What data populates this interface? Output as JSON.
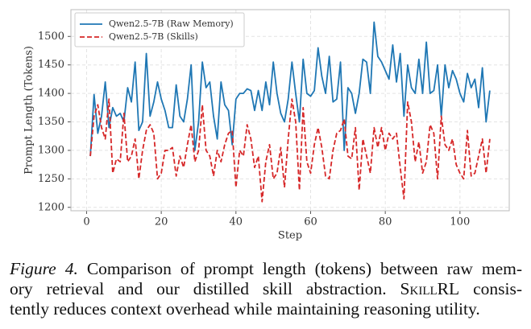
{
  "chart_data": {
    "type": "line",
    "xlabel": "Step",
    "ylabel": "Prompt Length (Tokens)",
    "x": [
      1,
      2,
      3,
      4,
      5,
      6,
      7,
      8,
      9,
      10,
      11,
      12,
      13,
      14,
      15,
      16,
      17,
      18,
      19,
      20,
      21,
      22,
      23,
      24,
      25,
      26,
      27,
      28,
      29,
      30,
      31,
      32,
      33,
      34,
      35,
      36,
      37,
      38,
      39,
      40,
      41,
      42,
      43,
      44,
      45,
      46,
      47,
      48,
      49,
      50,
      51,
      52,
      53,
      54,
      55,
      56,
      57,
      58,
      59,
      60,
      61,
      62,
      63,
      64,
      65,
      66,
      67,
      68,
      69,
      70,
      71,
      72,
      73,
      74,
      75,
      76,
      77,
      78,
      79,
      80,
      81,
      82,
      83,
      84,
      85,
      86,
      87,
      88,
      89,
      90,
      91,
      92,
      93,
      94,
      95,
      96,
      97,
      98,
      99,
      100,
      101,
      102,
      103,
      104,
      105,
      106,
      107,
      108
    ],
    "series": [
      {
        "name": "Qwen2.5-7B (Raw Memory)",
        "color": "#1f77b4",
        "dashed": false,
        "values": [
          1290,
          1398,
          1330,
          1360,
          1420,
          1340,
          1375,
          1360,
          1365,
          1350,
          1410,
          1385,
          1455,
          1335,
          1350,
          1470,
          1360,
          1385,
          1420,
          1390,
          1370,
          1340,
          1340,
          1415,
          1360,
          1350,
          1390,
          1450,
          1300,
          1350,
          1455,
          1410,
          1420,
          1360,
          1320,
          1420,
          1380,
          1370,
          1310,
          1390,
          1400,
          1400,
          1408,
          1405,
          1370,
          1405,
          1370,
          1420,
          1380,
          1455,
          1400,
          1365,
          1350,
          1390,
          1455,
          1400,
          1350,
          1460,
          1400,
          1395,
          1405,
          1480,
          1430,
          1400,
          1465,
          1385,
          1390,
          1455,
          1300,
          1410,
          1400,
          1365,
          1400,
          1460,
          1455,
          1400,
          1525,
          1465,
          1455,
          1440,
          1425,
          1485,
          1420,
          1470,
          1360,
          1450,
          1410,
          1400,
          1460,
          1400,
          1490,
          1400,
          1405,
          1450,
          1360,
          1450,
          1410,
          1440,
          1425,
          1400,
          1385,
          1435,
          1410,
          1425,
          1375,
          1445,
          1350,
          1405
        ]
      },
      {
        "name": "Qwen2.5-7B (Skills)",
        "color": "#d62728",
        "dashed": true,
        "values": [
          1290,
          1360,
          1380,
          1340,
          1320,
          1390,
          1260,
          1285,
          1280,
          1365,
          1280,
          1290,
          1320,
          1250,
          1300,
          1335,
          1345,
          1330,
          1250,
          1260,
          1300,
          1300,
          1305,
          1255,
          1290,
          1270,
          1310,
          1345,
          1280,
          1300,
          1380,
          1300,
          1290,
          1255,
          1300,
          1280,
          1310,
          1330,
          1335,
          1235,
          1300,
          1290,
          1345,
          1320,
          1270,
          1290,
          1210,
          1280,
          1310,
          1250,
          1260,
          1305,
          1235,
          1320,
          1390,
          1350,
          1230,
          1375,
          1280,
          1260,
          1310,
          1340,
          1305,
          1255,
          1250,
          1300,
          1330,
          1335,
          1355,
          1290,
          1285,
          1340,
          1230,
          1320,
          1290,
          1260,
          1340,
          1305,
          1340,
          1300,
          1330,
          1320,
          1330,
          1270,
          1215,
          1385,
          1350,
          1280,
          1315,
          1260,
          1280,
          1345,
          1330,
          1250,
          1360,
          1310,
          1300,
          1320,
          1275,
          1260,
          1250,
          1335,
          1255,
          1260,
          1290,
          1320,
          1260,
          1320
        ]
      }
    ],
    "xlim": [
      -4.2,
      113.2
    ],
    "ylim": [
      1194,
      1547
    ],
    "xticks": [
      0,
      20,
      40,
      60,
      80,
      100
    ],
    "yticks": [
      1200,
      1250,
      1300,
      1350,
      1400,
      1450,
      1500
    ],
    "grid": true,
    "legend": "upper left"
  },
  "caption": {
    "label": "Figure 4.",
    "line1": "Comparison of prompt length (tokens) between raw mem-",
    "line2a": "ory retrieval and our distilled skill abstraction.",
    "name": "SkillRL",
    "line2b": "consis-",
    "line3": "tently reduces context overhead while maintaining reasoning utility."
  }
}
